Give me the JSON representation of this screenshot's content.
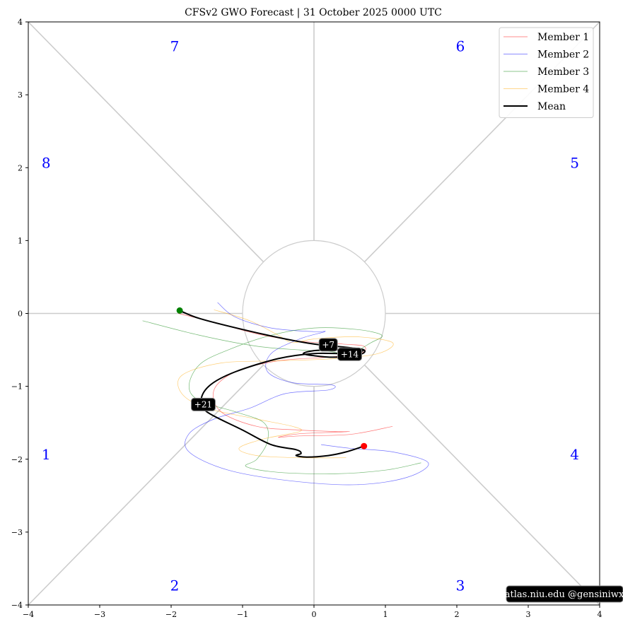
{
  "chart_data": {
    "type": "line",
    "title": "CFSv2 GWO Forecast   |   31  October  2025 0000 UTC",
    "xlim": [
      -4,
      4
    ],
    "ylim": [
      -4,
      4
    ],
    "x_ticks": [
      -4,
      -3,
      -2,
      -1,
      0,
      1,
      2,
      3,
      4
    ],
    "y_ticks": [
      -4,
      -3,
      -2,
      -1,
      0,
      1,
      2,
      3,
      4
    ],
    "x_tick_labels": [
      "−4",
      "−3",
      "−2",
      "−1",
      "0",
      "1",
      "2",
      "3",
      "4"
    ],
    "y_tick_labels": [
      "−4",
      "−3",
      "−2",
      "−1",
      "0",
      "1",
      "2",
      "3",
      "4"
    ],
    "unit_circle_radius": 1,
    "phase_labels": [
      {
        "text": "1",
        "x": -3.75,
        "y": -1.95
      },
      {
        "text": "2",
        "x": -1.95,
        "y": -3.75
      },
      {
        "text": "3",
        "x": 2.05,
        "y": -3.75
      },
      {
        "text": "4",
        "x": 3.65,
        "y": -1.95
      },
      {
        "text": "5",
        "x": 3.65,
        "y": 2.05
      },
      {
        "text": "6",
        "x": 2.05,
        "y": 3.65
      },
      {
        "text": "7",
        "x": -1.95,
        "y": 3.65
      },
      {
        "text": "8",
        "x": -3.75,
        "y": 2.05
      }
    ],
    "legend_position": "top-right",
    "series": [
      {
        "name": "Member 1",
        "color": "#ff0000",
        "points": [
          [
            -1.9,
            0.0
          ],
          [
            -1.4,
            -0.12
          ],
          [
            -0.8,
            -0.28
          ],
          [
            -0.2,
            -0.38
          ],
          [
            0.4,
            -0.42
          ],
          [
            0.7,
            -0.45
          ],
          [
            0.65,
            -0.55
          ],
          [
            0.2,
            -0.6
          ],
          [
            -0.5,
            -0.65
          ],
          [
            -1.1,
            -0.8
          ],
          [
            -1.4,
            -1.05
          ],
          [
            -1.3,
            -1.35
          ],
          [
            -0.8,
            -1.55
          ],
          [
            -0.2,
            -1.6
          ],
          [
            0.3,
            -1.62
          ],
          [
            0.5,
            -1.62
          ],
          [
            0.3,
            -1.63
          ],
          [
            -0.2,
            -1.65
          ],
          [
            -0.5,
            -1.7
          ],
          [
            -0.2,
            -1.68
          ],
          [
            0.5,
            -1.66
          ],
          [
            1.1,
            -1.55
          ]
        ]
      },
      {
        "name": "Member 2",
        "color": "#0000ff",
        "points": [
          [
            -1.35,
            0.15
          ],
          [
            -1.1,
            -0.05
          ],
          [
            -0.6,
            -0.2
          ],
          [
            0.0,
            -0.25
          ],
          [
            0.15,
            -0.25
          ],
          [
            -0.2,
            -0.35
          ],
          [
            -0.6,
            -0.55
          ],
          [
            -0.65,
            -0.8
          ],
          [
            -0.3,
            -0.95
          ],
          [
            0.25,
            -0.98
          ],
          [
            0.2,
            -1.05
          ],
          [
            -0.4,
            -1.1
          ],
          [
            -0.9,
            -1.3
          ],
          [
            -1.4,
            -1.45
          ],
          [
            -1.75,
            -1.65
          ],
          [
            -1.75,
            -1.9
          ],
          [
            -1.2,
            -2.15
          ],
          [
            -0.3,
            -2.3
          ],
          [
            0.6,
            -2.35
          ],
          [
            1.3,
            -2.25
          ],
          [
            1.6,
            -2.05
          ],
          [
            1.1,
            -1.9
          ],
          [
            0.5,
            -1.85
          ],
          [
            0.1,
            -1.8
          ]
        ]
      },
      {
        "name": "Member 3",
        "color": "#008000",
        "points": [
          [
            -2.4,
            -0.1
          ],
          [
            -1.6,
            -0.3
          ],
          [
            -0.8,
            -0.45
          ],
          [
            -0.2,
            -0.5
          ],
          [
            0.2,
            -0.52
          ],
          [
            0.5,
            -0.55
          ],
          [
            0.8,
            -0.4
          ],
          [
            0.95,
            -0.3
          ],
          [
            0.6,
            -0.22
          ],
          [
            0.0,
            -0.2
          ],
          [
            -0.6,
            -0.3
          ],
          [
            -1.2,
            -0.5
          ],
          [
            -1.6,
            -0.7
          ],
          [
            -1.75,
            -1.0
          ],
          [
            -1.6,
            -1.2
          ],
          [
            -1.1,
            -1.35
          ],
          [
            -0.7,
            -1.5
          ],
          [
            -0.65,
            -1.75
          ],
          [
            -0.8,
            -2.0
          ],
          [
            -0.95,
            -2.1
          ],
          [
            -0.5,
            -2.18
          ],
          [
            0.3,
            -2.2
          ],
          [
            1.0,
            -2.15
          ],
          [
            1.5,
            -2.05
          ]
        ]
      },
      {
        "name": "Member 4",
        "color": "#ffa500",
        "points": [
          [
            -1.4,
            0.05
          ],
          [
            -0.9,
            -0.1
          ],
          [
            -0.5,
            -0.3
          ],
          [
            -0.3,
            -0.4
          ],
          [
            0.0,
            -0.35
          ],
          [
            0.6,
            -0.32
          ],
          [
            1.1,
            -0.4
          ],
          [
            0.9,
            -0.55
          ],
          [
            0.3,
            -0.62
          ],
          [
            -0.5,
            -0.65
          ],
          [
            -1.3,
            -0.68
          ],
          [
            -1.85,
            -0.85
          ],
          [
            -1.85,
            -1.1
          ],
          [
            -1.5,
            -1.3
          ],
          [
            -0.8,
            -1.45
          ],
          [
            -0.3,
            -1.55
          ],
          [
            -0.2,
            -1.62
          ],
          [
            -0.7,
            -1.72
          ],
          [
            -1.05,
            -1.85
          ],
          [
            -0.8,
            -1.95
          ],
          [
            -0.2,
            -1.98
          ],
          [
            0.45,
            -1.98
          ]
        ]
      },
      {
        "name": "Mean",
        "color": "#000000",
        "points": [
          [
            -1.88,
            0.04
          ],
          [
            -1.6,
            -0.07
          ],
          [
            -1.0,
            -0.22
          ],
          [
            -0.4,
            -0.35
          ],
          [
            0.0,
            -0.42
          ],
          [
            0.2,
            -0.44
          ],
          [
            0.5,
            -0.47
          ],
          [
            0.7,
            -0.5
          ],
          [
            0.65,
            -0.56
          ],
          [
            0.3,
            -0.6
          ],
          [
            0.0,
            -0.58
          ],
          [
            -0.15,
            -0.55
          ],
          [
            0.0,
            -0.51
          ],
          [
            0.3,
            -0.5
          ],
          [
            0.5,
            -0.48
          ],
          [
            0.7,
            -0.5
          ],
          [
            0.5,
            -0.55
          ],
          [
            0.0,
            -0.55
          ],
          [
            -0.5,
            -0.62
          ],
          [
            -1.1,
            -0.8
          ],
          [
            -1.45,
            -0.98
          ],
          [
            -1.58,
            -1.18
          ],
          [
            -1.5,
            -1.35
          ],
          [
            -1.0,
            -1.6
          ],
          [
            -0.6,
            -1.8
          ],
          [
            -0.25,
            -1.87
          ],
          [
            -0.18,
            -1.92
          ],
          [
            -0.25,
            -1.95
          ],
          [
            -0.1,
            -1.97
          ],
          [
            0.2,
            -1.95
          ],
          [
            0.45,
            -1.9
          ],
          [
            0.7,
            -1.82
          ]
        ]
      }
    ],
    "start_marker": {
      "x": -1.88,
      "y": 0.04,
      "color": "#008000"
    },
    "end_marker": {
      "x": 0.7,
      "y": -1.82,
      "color": "#ff0000"
    },
    "day_labels": [
      {
        "text": "+7",
        "x": 0.2,
        "y": -0.43
      },
      {
        "text": "+14",
        "x": 0.5,
        "y": -0.56
      },
      {
        "text": "+21",
        "x": -1.55,
        "y": -1.25
      }
    ],
    "credit": "atlas.niu.edu  @gensiniwx"
  }
}
